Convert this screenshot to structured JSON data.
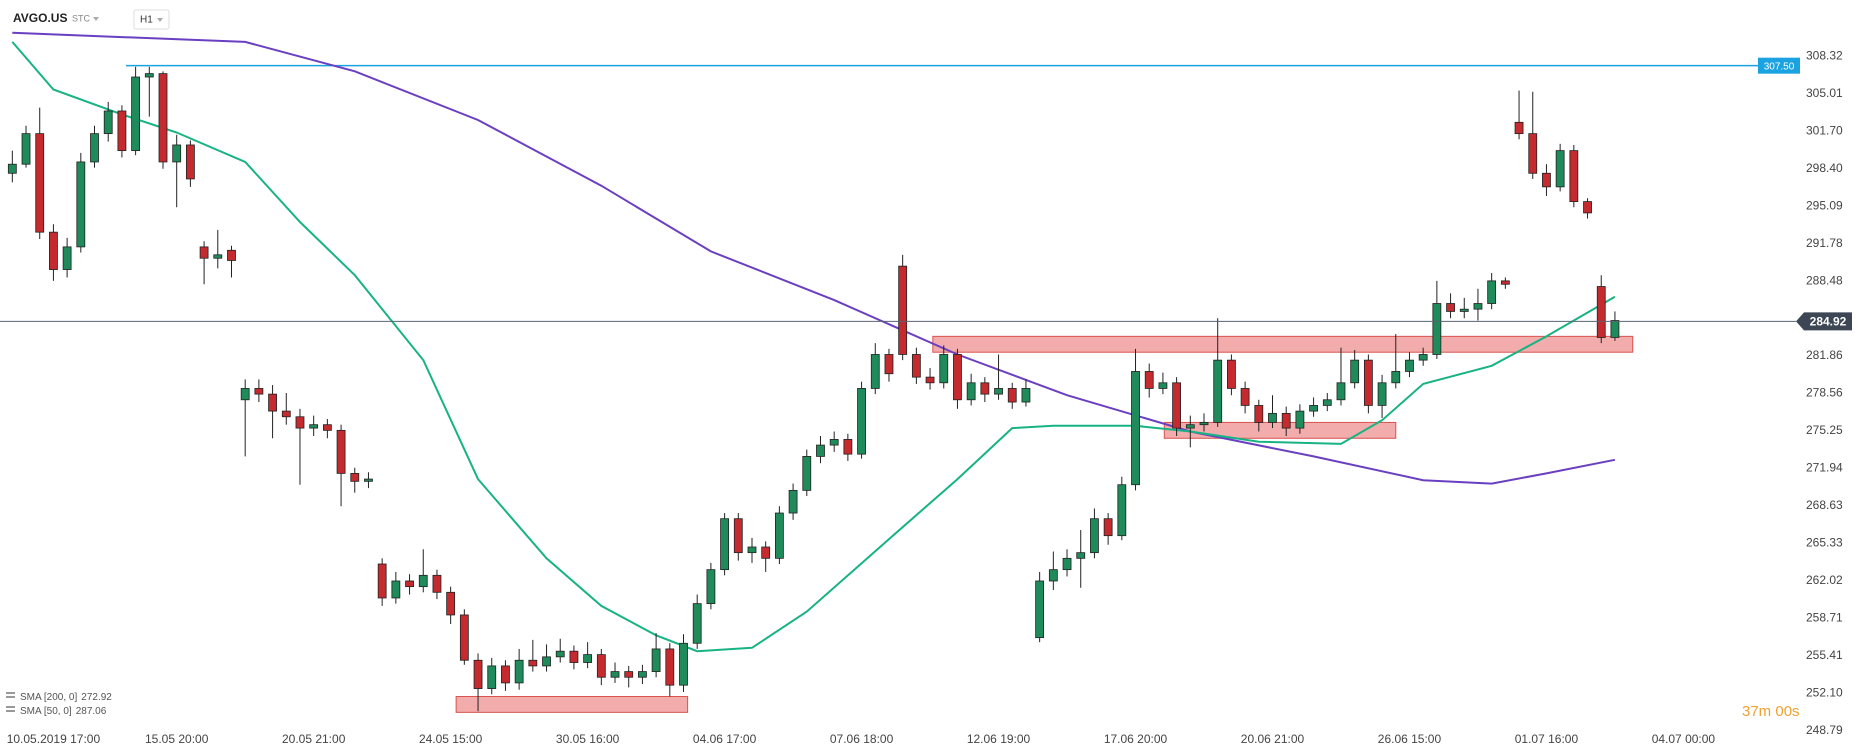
{
  "header": {
    "symbol": "AVGO.US",
    "market": "STC",
    "interval": "H1"
  },
  "chart_data": {
    "type": "candlestick",
    "xlim": [
      -0.9,
      130
    ],
    "ylim": [
      248.4,
      313.3
    ],
    "xticks": [
      {
        "value": 3,
        "label": "10.05.2019 17:00"
      },
      {
        "value": 12,
        "label": "15.05 20:00"
      },
      {
        "value": 22,
        "label": "20.05 21:00"
      },
      {
        "value": 32,
        "label": "24.05 15:00"
      },
      {
        "value": 42,
        "label": "30.05 16:00"
      },
      {
        "value": 52,
        "label": "04.06 17:00"
      },
      {
        "value": 62,
        "label": "07.06 18:00"
      },
      {
        "value": 72,
        "label": "12.06 19:00"
      },
      {
        "value": 82,
        "label": "17.06 20:00"
      },
      {
        "value": 92,
        "label": "20.06 21:00"
      },
      {
        "value": 102,
        "label": "26.06 15:00"
      },
      {
        "value": 112,
        "label": "01.07 16:00"
      },
      {
        "value": 122,
        "label": "04.07 00:00"
      }
    ],
    "yticks": [
      308.32,
      305.01,
      {
        "value": 301.7,
        "label": "301.70"
      },
      {
        "value": 298.4,
        "label": "298.40"
      },
      295.09,
      291.78,
      288.48,
      281.86,
      278.56,
      275.25,
      271.94,
      268.63,
      265.33,
      262.02,
      258.71,
      255.41,
      {
        "value": 252.1,
        "label": "252.10"
      },
      248.79
    ],
    "up_color": "#1f8a5a",
    "down_color": "#c42a2e",
    "candles": {
      "open": [
        298.0,
        298.8,
        301.5,
        292.8,
        289.5,
        291.5,
        299.0,
        301.5,
        303.5,
        300.0,
        306.5,
        306.8,
        299.0,
        300.5,
        291.5,
        290.5,
        291.2,
        278.0,
        279.0,
        278.5,
        277.0,
        276.5,
        275.5,
        275.8,
        275.3,
        271.5,
        270.8,
        263.5,
        260.5,
        262.0,
        261.5,
        262.5,
        261.0,
        259.0,
        255.0,
        252.5,
        254.5,
        253.0,
        255.0,
        254.5,
        255.3,
        255.8,
        254.8,
        255.5,
        253.5,
        254.0,
        253.5,
        254.0,
        256.0,
        252.8,
        256.5,
        260.0,
        263.0,
        267.5,
        264.5,
        265.0,
        264.0,
        268.0,
        270.0,
        273.0,
        274.0,
        274.5,
        273.2,
        279.0,
        282.0,
        289.8,
        282.0,
        280.0,
        279.5,
        282.0,
        278.0,
        279.5,
        278.5,
        279.0,
        277.8,
        257.0,
        262.0,
        263.0,
        264.0,
        264.5,
        267.5,
        266.0,
        270.5,
        280.5,
        279.0,
        279.5,
        275.5,
        275.8,
        276.0,
        281.5,
        279.0,
        277.5,
        276.0,
        276.8,
        275.5,
        277.0,
        277.5,
        278.0,
        279.5,
        281.5,
        277.5,
        279.5,
        280.5,
        281.5,
        282.0,
        286.5,
        285.8,
        286.0,
        286.5,
        288.5,
        302.5,
        301.5,
        298.0,
        296.8,
        300.0,
        295.5,
        288.0,
        283.5
      ],
      "high": [
        300.0,
        302.2,
        303.8,
        293.5,
        292.3,
        299.8,
        302.2,
        304.3,
        304.0,
        307.4,
        307.4,
        307.0,
        301.4,
        300.9,
        292.0,
        293.0,
        291.6,
        279.8,
        279.8,
        279.3,
        278.6,
        277.2,
        276.6,
        276.3,
        275.8,
        272.0,
        271.6,
        264.0,
        262.8,
        262.6,
        264.8,
        263.0,
        261.5,
        259.5,
        255.6,
        255.2,
        255.0,
        256.0,
        256.8,
        256.4,
        256.9,
        256.3,
        256.6,
        256.0,
        254.8,
        254.5,
        254.6,
        257.4,
        256.5,
        257.3,
        260.8,
        263.6,
        268.0,
        268.0,
        265.8,
        265.5,
        268.6,
        270.6,
        273.6,
        274.8,
        275.2,
        275.0,
        279.6,
        283.0,
        282.5,
        290.8,
        282.6,
        280.8,
        282.8,
        282.5,
        280.3,
        280.0,
        282.0,
        279.5,
        279.8,
        262.8,
        264.6,
        264.8,
        266.5,
        268.4,
        268.0,
        271.2,
        282.5,
        281.2,
        280.4,
        280.0,
        276.6,
        276.8,
        285.2,
        282.0,
        279.6,
        278.0,
        278.4,
        277.4,
        277.6,
        278.2,
        278.6,
        282.6,
        282.4,
        282.0,
        280.2,
        283.8,
        282.2,
        282.6,
        288.5,
        287.4,
        287.0,
        287.8,
        289.2,
        288.8,
        305.3,
        305.2,
        298.8,
        300.6,
        300.5,
        295.8,
        289.0,
        285.8
      ],
      "low": [
        297.2,
        298.5,
        292.2,
        288.5,
        288.8,
        291.0,
        298.5,
        300.8,
        299.4,
        299.6,
        303.0,
        298.4,
        295.0,
        296.8,
        288.2,
        289.6,
        288.8,
        273.0,
        277.8,
        274.6,
        275.8,
        270.5,
        274.8,
        274.6,
        268.6,
        269.8,
        270.2,
        259.8,
        260.0,
        260.8,
        261.0,
        260.4,
        258.2,
        254.6,
        250.5,
        252.0,
        252.3,
        252.4,
        254.0,
        254.0,
        254.8,
        254.2,
        254.3,
        252.8,
        253.0,
        252.6,
        252.9,
        253.5,
        251.8,
        252.2,
        256.0,
        259.5,
        262.5,
        263.8,
        263.6,
        262.8,
        263.5,
        267.4,
        269.5,
        272.4,
        273.4,
        272.6,
        272.8,
        278.5,
        279.6,
        281.5,
        279.4,
        278.9,
        279.0,
        277.2,
        277.5,
        277.8,
        278.0,
        277.2,
        277.4,
        256.6,
        261.2,
        262.4,
        261.4,
        264.0,
        265.2,
        265.6,
        270.0,
        278.2,
        278.5,
        274.8,
        273.8,
        275.2,
        275.6,
        278.4,
        276.8,
        275.2,
        275.5,
        274.8,
        275.0,
        276.5,
        277.0,
        277.5,
        279.0,
        276.8,
        276.4,
        279.0,
        280.0,
        281.0,
        281.6,
        285.2,
        285.2,
        285.0,
        286.0,
        287.8,
        301.0,
        297.5,
        296.0,
        296.4,
        295.0,
        294.0,
        283.0,
        283.2
      ],
      "close": [
        298.8,
        301.5,
        292.8,
        289.5,
        291.5,
        299.0,
        301.5,
        303.5,
        300.0,
        306.5,
        306.8,
        299.0,
        300.5,
        297.5,
        290.5,
        290.8,
        290.3,
        279.0,
        278.5,
        277.0,
        276.5,
        275.5,
        275.8,
        275.3,
        271.5,
        270.8,
        271.0,
        260.5,
        262.0,
        261.5,
        262.5,
        261.0,
        259.0,
        255.0,
        252.5,
        254.5,
        253.0,
        255.0,
        254.5,
        255.3,
        255.8,
        254.8,
        255.5,
        253.5,
        254.0,
        253.5,
        254.0,
        256.0,
        252.8,
        256.5,
        260.0,
        263.0,
        267.5,
        264.5,
        265.0,
        264.0,
        268.0,
        270.0,
        273.0,
        274.0,
        274.5,
        273.2,
        279.0,
        282.0,
        280.3,
        282.0,
        280.0,
        279.5,
        282.0,
        278.0,
        279.5,
        278.5,
        279.0,
        277.8,
        279.0,
        262.0,
        263.0,
        264.0,
        264.5,
        267.5,
        266.0,
        270.5,
        280.5,
        279.0,
        279.5,
        275.5,
        275.8,
        276.0,
        281.5,
        279.0,
        277.5,
        276.0,
        276.8,
        275.5,
        277.0,
        277.5,
        278.0,
        279.5,
        281.5,
        277.5,
        279.5,
        280.5,
        281.5,
        282.0,
        286.5,
        285.8,
        286.0,
        286.5,
        288.5,
        288.2,
        301.5,
        298.0,
        296.8,
        300.0,
        295.5,
        294.5,
        283.5,
        285.0
      ]
    },
    "series": [
      {
        "name": "SMA [200, 0]",
        "legend_value": 272.92,
        "color": "#6a3fc1",
        "x": [
          0,
          17,
          25,
          34,
          43,
          51,
          60,
          69,
          77,
          86,
          95,
          103,
          108,
          112,
          117
        ],
        "values": [
          310.4,
          309.6,
          307.0,
          302.7,
          296.9,
          291.1,
          286.8,
          282.0,
          278.4,
          275.2,
          273.0,
          270.9,
          270.6,
          271.5,
          272.7
        ]
      },
      {
        "name": "SMA [50, 0]",
        "legend_value": 287.06,
        "color": "#17b383",
        "x": [
          0,
          3,
          8,
          12,
          17,
          21,
          25,
          30,
          34,
          39,
          43,
          47,
          50,
          54,
          58,
          64,
          69,
          73,
          76,
          82,
          86,
          91,
          97,
          100,
          103,
          108,
          112,
          117
        ],
        "values": [
          309.6,
          305.4,
          303.2,
          301.6,
          299.0,
          293.7,
          289.0,
          281.5,
          271.0,
          264.0,
          259.8,
          257.2,
          255.8,
          256.1,
          259.3,
          265.7,
          271.0,
          275.5,
          275.7,
          275.7,
          275.2,
          274.3,
          274.1,
          276.2,
          279.4,
          281.0,
          283.6,
          287.1
        ]
      }
    ],
    "zones": [
      {
        "x": [
          32.4,
          49.3
        ],
        "y": [
          250.4,
          251.8
        ]
      },
      {
        "x": [
          67.2,
          118.3
        ],
        "y": [
          282.2,
          283.6
        ]
      },
      {
        "x": [
          84.1,
          101
        ],
        "y": [
          274.6,
          276.0
        ]
      }
    ],
    "zone_color": "#f2a3a3",
    "levels": [
      {
        "value": 307.5,
        "label": "307.50",
        "from": 8.3,
        "color": "#1ba2e0"
      }
    ],
    "last_price": {
      "value": 284.92,
      "color": "#5a6572"
    },
    "countdown": "37m 00s"
  }
}
